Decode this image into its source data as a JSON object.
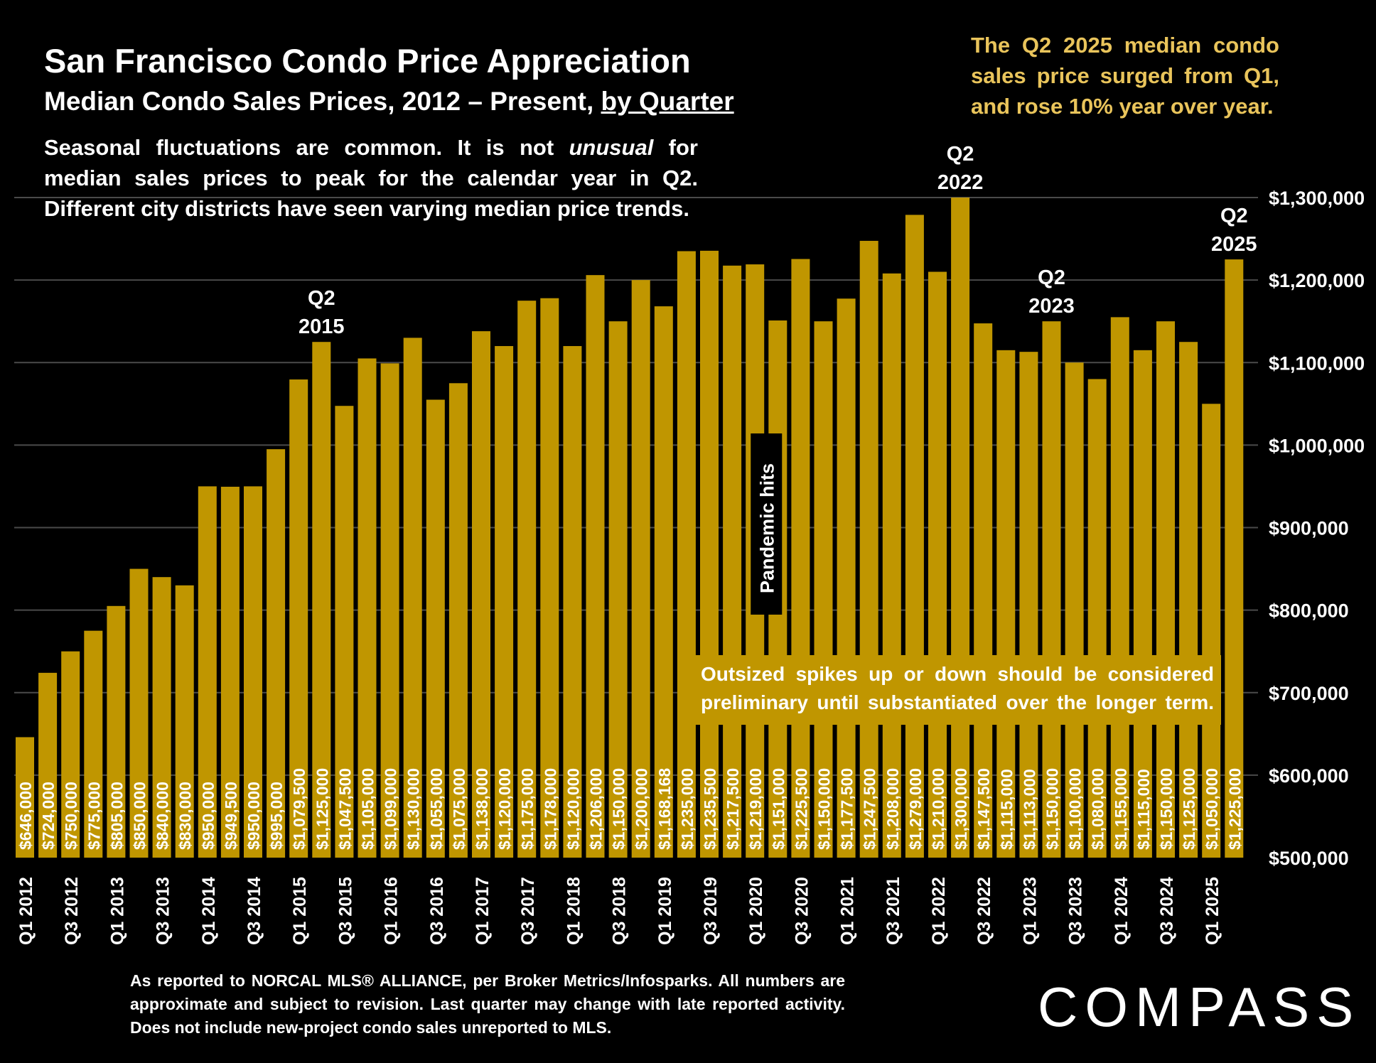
{
  "header": {
    "title": "San Francisco Condo Price Appreciation",
    "subtitle_main": "Median Condo Sales Prices, 2012 – Present,",
    "subtitle_link": "by Quarter"
  },
  "notes": {
    "left": "Seasonal fluctuations are common. It is not unusual for median sales prices to peak for the calendar year in Q2. Different city districts have seen varying median price trends.",
    "left_pre": "Seasonal fluctuations are common. It is not ",
    "left_em": "unusual",
    "left_post": " for median sales prices to peak for the calendar year in Q2. Different city districts have seen varying median price trends.",
    "right": "The Q2 2025 median condo sales price surged from Q1, and rose 10% year over year.",
    "callout_line1": "Outsized spikes up or down should be considered",
    "callout_line2": "preliminary until substantiated over the longer term.",
    "footnote": "As reported to NORCAL MLS® ALLIANCE, per Broker Metrics/Infosparks. All numbers are approximate and subject to revision. Last quarter may change with late reported activity. Does not include new-project condo sales unreported to MLS."
  },
  "logo": {
    "text": "COMPASS"
  },
  "colors": {
    "bar": "#c09600",
    "accent_text": "#e9c45b",
    "background": "#000000",
    "grid": "#4a4a4a"
  },
  "chart_data": {
    "type": "bar",
    "title": "San Francisco Condo Price Appreciation",
    "subtitle": "Median Condo Sales Prices, 2012 – Present, by Quarter",
    "xlabel": "",
    "ylabel": "",
    "ylim": [
      500000,
      1300000
    ],
    "yticks": [
      500000,
      600000,
      700000,
      800000,
      900000,
      1000000,
      1100000,
      1200000,
      1300000
    ],
    "ytick_labels": [
      "$500,000",
      "$600,000",
      "$700,000",
      "$800,000",
      "$900,000",
      "$1,000,000",
      "$1,100,000",
      "$1,200,000",
      "$1,300,000"
    ],
    "y_axis_position": "right",
    "grid": true,
    "categories": [
      "Q1 2012",
      "Q2 2012",
      "Q3 2012",
      "Q4 2012",
      "Q1 2013",
      "Q2 2013",
      "Q3 2013",
      "Q4 2013",
      "Q1 2014",
      "Q2 2014",
      "Q3 2014",
      "Q4 2014",
      "Q1 2015",
      "Q2 2015",
      "Q3 2015",
      "Q4 2015",
      "Q1 2016",
      "Q2 2016",
      "Q3 2016",
      "Q4 2016",
      "Q1 2017",
      "Q2 2017",
      "Q3 2017",
      "Q4 2017",
      "Q1 2018",
      "Q2 2018",
      "Q3 2018",
      "Q4 2018",
      "Q1 2019",
      "Q2 2019",
      "Q3 2019",
      "Q4 2019",
      "Q1 2020",
      "Q2 2020",
      "Q3 2020",
      "Q4 2020",
      "Q1 2021",
      "Q2 2021",
      "Q3 2021",
      "Q4 2021",
      "Q1 2022",
      "Q2 2022",
      "Q3 2022",
      "Q4 2022",
      "Q1 2023",
      "Q2 2023",
      "Q3 2023",
      "Q4 2023",
      "Q1 2024",
      "Q2 2024",
      "Q3 2024",
      "Q4 2024",
      "Q1 2025",
      "Q2 2025"
    ],
    "visible_x_labels": [
      "Q1 2012",
      "Q3 2012",
      "Q1 2013",
      "Q3 2013",
      "Q1 2014",
      "Q3 2014",
      "Q1 2015",
      "Q3 2015",
      "Q1 2016",
      "Q3 2016",
      "Q1 2017",
      "Q3 2017",
      "Q1 2018",
      "Q3 2018",
      "Q1 2019",
      "Q3 2019",
      "Q1 2020",
      "Q3 2020",
      "Q1 2021",
      "Q3 2021",
      "Q1 2022",
      "Q3 2022",
      "Q1 2023",
      "Q3 2023",
      "Q1 2024",
      "Q3 2024",
      "Q1 2025"
    ],
    "values": [
      646000,
      724000,
      750000,
      775000,
      805000,
      850000,
      840000,
      830000,
      950000,
      949500,
      950000,
      995000,
      1079500,
      1125000,
      1047500,
      1105000,
      1099000,
      1130000,
      1055000,
      1075000,
      1138000,
      1120000,
      1175000,
      1178000,
      1120000,
      1206000,
      1150000,
      1200000,
      1168168,
      1235000,
      1235500,
      1217500,
      1219000,
      1151000,
      1225500,
      1150000,
      1177500,
      1247500,
      1208000,
      1279000,
      1210000,
      1300000,
      1147500,
      1115000,
      1113000,
      1150000,
      1100000,
      1080000,
      1155000,
      1115000,
      1150000,
      1125000,
      1050000,
      1225000
    ],
    "data_labels": [
      "$646,000",
      "$724,000",
      "$750,000",
      "$775,000",
      "$805,000",
      "$850,000",
      "$840,000",
      "$830,000",
      "$950,000",
      "$949,500",
      "$950,000",
      "$995,000",
      "$1,079,500",
      "$1,125,000",
      "$1,047,500",
      "$1,105,000",
      "$1,099,000",
      "$1,130,000",
      "$1,055,000",
      "$1,075,000",
      "$1,138,000",
      "$1,120,000",
      "$1,175,000",
      "$1,178,000",
      "$1,120,000",
      "$1,206,000",
      "$1,150,000",
      "$1,200,000",
      "$1,168,168",
      "$1,235,000",
      "$1,235,500",
      "$1,217,500",
      "$1,219,000",
      "$1,151,000",
      "$1,225,500",
      "$1,150,000",
      "$1,177,500",
      "$1,247,500",
      "$1,208,000",
      "$1,279,000",
      "$1,210,000",
      "$1,300,000",
      "$1,147,500",
      "$1,115,000",
      "$1,113,000",
      "$1,150,000",
      "$1,100,000",
      "$1,080,000",
      "$1,155,000",
      "$1,115,000",
      "$1,150,000",
      "$1,125,000",
      "$1,050,000",
      "$1,225,000"
    ],
    "annotations": [
      {
        "index": 13,
        "line1": "Q2",
        "line2": "2015"
      },
      {
        "index": 41,
        "line1": "Q2",
        "line2": "2022"
      },
      {
        "index": 45,
        "line1": "Q2",
        "line2": "2023"
      },
      {
        "index": 53,
        "line1": "Q2",
        "line2": "2025"
      }
    ],
    "pandemic_label": {
      "after_index": 32,
      "text": "Pandemic hits"
    }
  }
}
